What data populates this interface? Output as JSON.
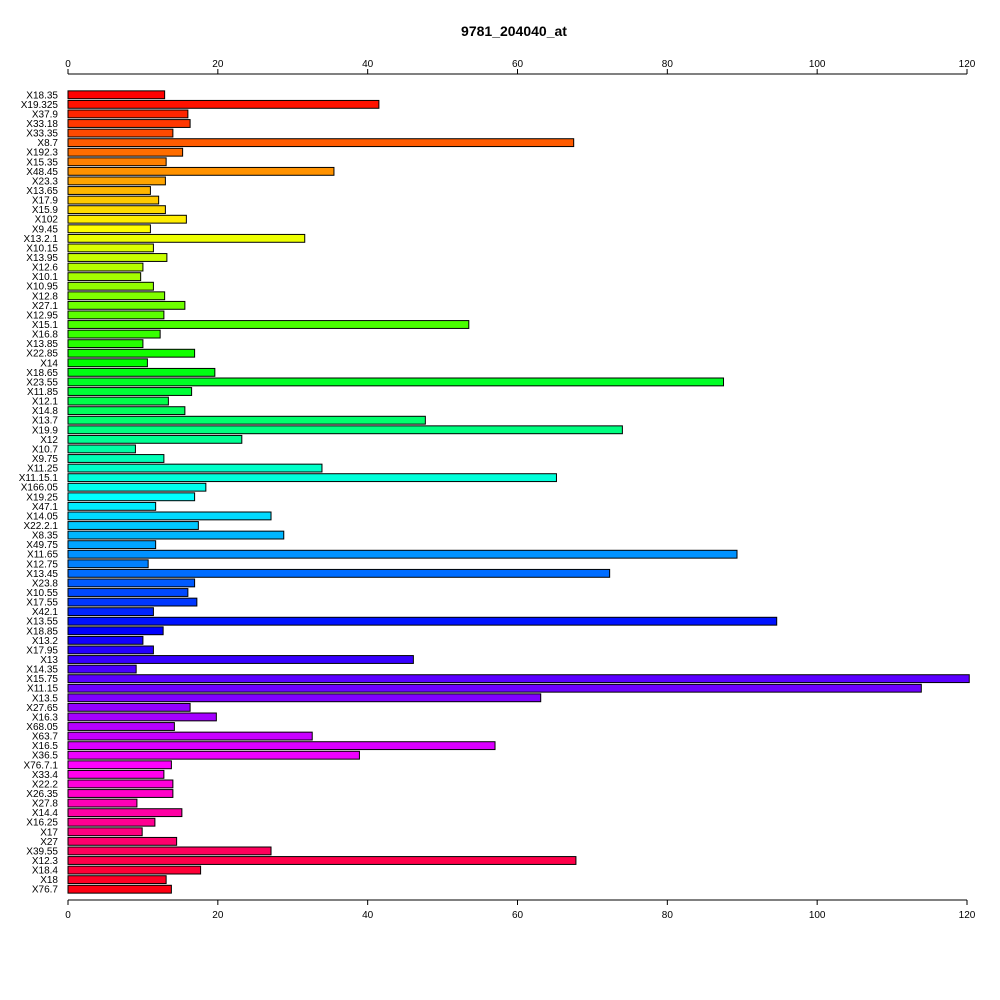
{
  "chart_data": {
    "type": "bar",
    "orientation": "horizontal",
    "title": "9781_204040_at",
    "xlim": [
      0,
      120
    ],
    "xticks": [
      0,
      20,
      40,
      60,
      80,
      100,
      120
    ],
    "axes": [
      "top",
      "bottom"
    ],
    "grid": false,
    "legend": "none",
    "color_scheme": "rainbow",
    "categories": [
      "X18.35",
      "X19.325",
      "X37.9",
      "X33.18",
      "X33.35",
      "X8.7",
      "X192.3",
      "X15.35",
      "X48.45",
      "X23.3",
      "X13.65",
      "X17.9",
      "X15.9",
      "X102",
      "X9.45",
      "X13.2.1",
      "X10.15",
      "X13.95",
      "X12.6",
      "X10.1",
      "X10.95",
      "X12.8",
      "X27.1",
      "X12.95",
      "X15.1",
      "X16.8",
      "X13.85",
      "X22.85",
      "X14",
      "X18.65",
      "X23.55",
      "X11.85",
      "X12.1",
      "X14.8",
      "X13.7",
      "X19.9",
      "X12",
      "X10.7",
      "X9.75",
      "X11.25",
      "X11.15.1",
      "X166.05",
      "X19.25",
      "X47.1",
      "X14.05",
      "X22.2.1",
      "X8.35",
      "X49.75",
      "X11.65",
      "X12.75",
      "X13.45",
      "X23.8",
      "X10.55",
      "X17.55",
      "X42.1",
      "X13.55",
      "X18.85",
      "X13.2",
      "X17.95",
      "X13",
      "X14.35",
      "X15.75",
      "X11.15",
      "X13.5",
      "X27.65",
      "X16.3",
      "X68.05",
      "X63.7",
      "X16.5",
      "X36.5",
      "X76.7.1",
      "X33.4",
      "X22.2",
      "X26.35",
      "X27.8",
      "X14.4",
      "X16.25",
      "X17",
      "X27",
      "X39.55",
      "X12.3",
      "X18.4",
      "X18",
      "X76.7"
    ],
    "values": [
      12.9,
      41.5,
      16,
      16.3,
      14,
      67.5,
      15.3,
      13.1,
      35.5,
      13,
      11,
      12.1,
      13,
      15.8,
      11,
      31.6,
      11.4,
      13.2,
      10,
      9.7,
      11.4,
      12.9,
      15.6,
      12.8,
      53.5,
      12.3,
      10,
      16.9,
      10.6,
      19.6,
      87.5,
      16.5,
      13.4,
      15.6,
      47.7,
      74,
      23.2,
      9,
      12.8,
      33.9,
      65.2,
      18.4,
      16.9,
      11.7,
      27.1,
      17.4,
      28.8,
      11.7,
      89.3,
      10.7,
      72.3,
      16.9,
      16,
      17.2,
      11.4,
      94.6,
      12.7,
      10,
      11.4,
      46.1,
      9.1,
      120.3,
      113.9,
      63.1,
      16.3,
      19.8,
      14.2,
      32.6,
      57,
      38.9,
      13.8,
      12.8,
      14,
      14,
      9.2,
      15.2,
      11.6,
      9.9,
      14.5,
      27.1,
      67.8,
      17.7,
      13.1,
      13.8
    ]
  }
}
